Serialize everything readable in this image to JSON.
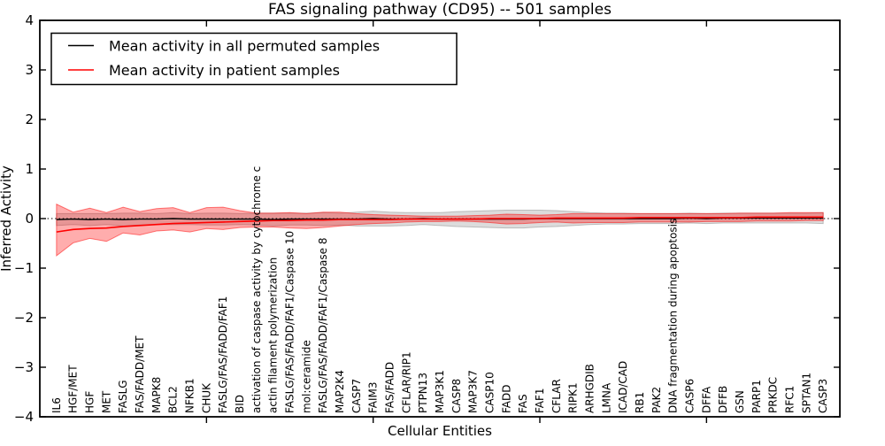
{
  "figure": {
    "title": "FAS signaling pathway (CD95) -- 501 samples",
    "xlabel": "Cellular Entities",
    "ylabel": "Inferred Activity"
  },
  "legend": {
    "position": "upper left",
    "entries": [
      {
        "label": "Mean activity in all permuted samples",
        "color": "#000000"
      },
      {
        "label": "Mean activity in patient samples",
        "color": "#ff0000"
      }
    ]
  },
  "colors": {
    "background": "#ffffff",
    "frame": "#000000",
    "permuted_line": "#000000",
    "patient_line": "#ff0000",
    "permuted_band": "#808080",
    "patient_band": "#ff0000"
  },
  "chart_data": {
    "type": "line",
    "title": "FAS signaling pathway (CD95) -- 501 samples",
    "xlabel": "Cellular Entities",
    "ylabel": "Inferred Activity",
    "ylim": [
      -4,
      4
    ],
    "yticks": {
      "values": [
        4,
        3,
        2,
        1,
        0,
        -1,
        -2,
        -3,
        -4
      ],
      "labels": [
        "4",
        "3",
        "2",
        "1",
        "0",
        "−1",
        "−2",
        "−3",
        "−4"
      ]
    },
    "xtick_positions": [
      10,
      20,
      30,
      40
    ],
    "grid": false,
    "zero_line_style": "dotted",
    "legend_position": "upper left",
    "categories": [
      "IL6",
      "HGF/MET",
      "HGF",
      "MET",
      "FASLG",
      "FAS/FADD/MET",
      "MAPK8",
      "BCL2",
      "NFKB1",
      "CHUK",
      "FASLG/FAS/FADD/FAF1",
      "BID",
      "activation of caspase activity by cytochrome c",
      "actin filament polymerization",
      "FASLG/FAS/FADD/FAF1/Caspase 10",
      "mol:ceramide",
      "FASLG/FAS/FADD/FAF1/Caspase 8",
      "MAP2K4",
      "CASP7",
      "FAIM3",
      "FAS/FADD",
      "CFLAR/RIP1",
      "PTPN13",
      "MAP3K1",
      "CASP8",
      "MAP3K7",
      "CASP10",
      "FADD",
      "FAS",
      "FAF1",
      "CFLAR",
      "RIPK1",
      "ARHGDIB",
      "LMNA",
      "ICAD/CAD",
      "RB1",
      "PAK2",
      "DNA fragmentation during apoptosis",
      "CASP6",
      "DFFA",
      "DFFB",
      "GSN",
      "PARP1",
      "PRKDC",
      "RFC1",
      "SPTAN1",
      "CASP3"
    ],
    "series": [
      {
        "name": "Mean activity in all permuted samples",
        "color": "#000000",
        "band_color": "#808080",
        "band_alpha": 0.28,
        "values": [
          -0.02,
          -0.01,
          -0.02,
          -0.01,
          -0.02,
          -0.01,
          -0.01,
          0.0,
          -0.01,
          -0.01,
          -0.01,
          -0.01,
          -0.01,
          -0.02,
          -0.01,
          -0.01,
          -0.01,
          -0.01,
          -0.01,
          0.0,
          -0.01,
          -0.01,
          0.0,
          -0.01,
          -0.01,
          -0.01,
          -0.01,
          -0.01,
          -0.01,
          0.0,
          0.0,
          0.0,
          0.0,
          0.0,
          0.0,
          0.0,
          0.0,
          0.0,
          0.01,
          0.0,
          0.01,
          0.01,
          0.01,
          0.01,
          0.01,
          0.01,
          0.01
        ],
        "band_halfwidth": [
          0.12,
          0.11,
          0.12,
          0.11,
          0.13,
          0.12,
          0.11,
          0.12,
          0.11,
          0.12,
          0.12,
          0.11,
          0.12,
          0.13,
          0.12,
          0.12,
          0.13,
          0.12,
          0.14,
          0.15,
          0.14,
          0.13,
          0.12,
          0.13,
          0.15,
          0.16,
          0.17,
          0.18,
          0.18,
          0.17,
          0.16,
          0.14,
          0.12,
          0.11,
          0.11,
          0.1,
          0.1,
          0.1,
          0.1,
          0.1,
          0.1,
          0.1,
          0.1,
          0.1,
          0.1,
          0.1,
          0.11
        ]
      },
      {
        "name": "Mean activity in patient samples",
        "color": "#ff0000",
        "band_color": "#ff0000",
        "band_alpha": 0.32,
        "values": [
          -0.27,
          -0.22,
          -0.2,
          -0.19,
          -0.16,
          -0.14,
          -0.12,
          -0.1,
          -0.09,
          -0.08,
          -0.07,
          -0.06,
          -0.05,
          -0.04,
          -0.04,
          -0.03,
          -0.03,
          -0.02,
          -0.02,
          -0.02,
          -0.02,
          -0.01,
          -0.01,
          -0.01,
          -0.01,
          -0.01,
          0.0,
          0.0,
          0.0,
          0.0,
          0.01,
          0.01,
          0.01,
          0.01,
          0.01,
          0.02,
          0.02,
          0.02,
          0.02,
          0.02,
          0.02,
          0.02,
          0.03,
          0.03,
          0.03,
          0.03,
          0.03
        ],
        "band_upper": [
          0.29,
          0.13,
          0.21,
          0.12,
          0.23,
          0.14,
          0.2,
          0.22,
          0.12,
          0.22,
          0.23,
          0.16,
          0.11,
          0.11,
          0.12,
          0.1,
          0.13,
          0.13,
          0.1,
          0.08,
          0.07,
          0.06,
          0.05,
          0.05,
          0.05,
          0.06,
          0.07,
          0.09,
          0.08,
          0.07,
          0.08,
          0.1,
          0.1,
          0.1,
          0.1,
          0.1,
          0.1,
          0.1,
          0.1,
          0.1,
          0.1,
          0.11,
          0.11,
          0.11,
          0.12,
          0.12,
          0.12
        ],
        "band_lower": [
          -0.75,
          -0.49,
          -0.4,
          -0.46,
          -0.29,
          -0.33,
          -0.25,
          -0.23,
          -0.27,
          -0.2,
          -0.22,
          -0.18,
          -0.17,
          -0.17,
          -0.19,
          -0.2,
          -0.18,
          -0.15,
          -0.12,
          -0.1,
          -0.09,
          -0.07,
          -0.06,
          -0.06,
          -0.05,
          -0.06,
          -0.08,
          -0.11,
          -0.1,
          -0.08,
          -0.07,
          -0.09,
          -0.08,
          -0.08,
          -0.08,
          -0.07,
          -0.07,
          -0.07,
          -0.07,
          -0.06,
          -0.06,
          -0.06,
          -0.05,
          -0.05,
          -0.05,
          -0.04,
          -0.04
        ]
      }
    ]
  }
}
